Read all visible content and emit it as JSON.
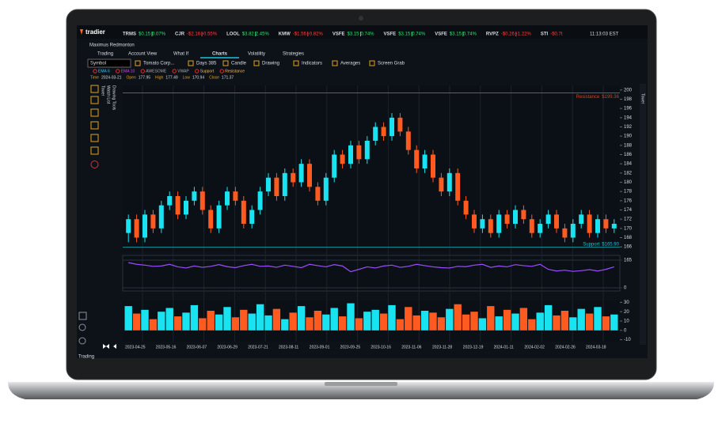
{
  "header": {
    "logo": "tradier",
    "tickers": [
      {
        "symbol": "TRMS",
        "change": "$0.15",
        "percent": "0.07%",
        "up": true
      },
      {
        "symbol": "CJR",
        "change": "-$2.16",
        "percent": "-0.55%",
        "up": false
      },
      {
        "symbol": "LOOL",
        "change": "$3.82",
        "percent": "2.45%",
        "up": true
      },
      {
        "symbol": "KMW",
        "change": "-$1.56",
        "percent": "-0.82%",
        "up": false
      },
      {
        "symbol": "VSFE",
        "change": "$3.15",
        "percent": "0.74%",
        "up": true
      },
      {
        "symbol": "VSFE",
        "change": "$3.15",
        "percent": "0.74%",
        "up": true
      },
      {
        "symbol": "VSFE",
        "change": "$3.15",
        "percent": "0.74%",
        "up": true
      },
      {
        "symbol": "RVPZ",
        "change": "-$0.26",
        "percent": "-1.22%",
        "up": false
      },
      {
        "symbol": "STI",
        "change": "-$0.7t",
        "percent": null,
        "up": false
      }
    ],
    "time": "11:13:03 EST"
  },
  "account": "Maximus Redmonton",
  "tabs": [
    "Trading",
    "Account View",
    "What If",
    "Charts",
    "Volatility",
    "Strategies"
  ],
  "active_tab": 3,
  "toolbar": {
    "symbol": "Symbol",
    "items": [
      "Tomato Corp...",
      "Days 385",
      "Candle",
      "Drawing",
      "Indicators",
      "Averages",
      "Screen Grab"
    ]
  },
  "indicators": [
    {
      "name": "EMA 6",
      "color": "#4fc3f7"
    },
    {
      "name": "EMA 10",
      "color": "#e040fb"
    },
    {
      "name": "AWESOME",
      "color": "#aaaaaa"
    },
    {
      "name": "VWAP",
      "color": "#aaaaaa"
    },
    {
      "name": "Support",
      "color": "#ffb74d"
    },
    {
      "name": "Resistance",
      "color": "#ffb74d"
    }
  ],
  "quote": [
    {
      "label": "Time",
      "value": "2024-03-21"
    },
    {
      "label": "Open",
      "value": 177.95
    },
    {
      "label": "High",
      "value": 177.49
    },
    {
      "label": "Low",
      "value": 170.94
    },
    {
      "label": "Close",
      "value": 171.37
    }
  ],
  "side_tabs": [
    "Tower",
    "Watch List",
    "Drawing Tools"
  ],
  "right_tab": "Tower",
  "bottom_tab": "Trading",
  "chart": {
    "type": "candlestick",
    "up_color": "#19e3f0",
    "down_color": "#ff5a1f",
    "candles": [
      [
        169,
        173,
        167,
        172
      ],
      [
        172,
        173,
        167,
        168
      ],
      [
        168,
        174,
        167,
        173
      ],
      [
        173,
        174,
        169,
        170
      ],
      [
        170,
        176,
        169,
        175
      ],
      [
        175,
        178,
        174,
        177
      ],
      [
        177,
        178,
        172,
        173
      ],
      [
        173,
        177,
        172,
        176
      ],
      [
        176,
        179,
        175,
        178
      ],
      [
        178,
        179,
        173,
        174
      ],
      [
        174,
        175,
        169,
        170
      ],
      [
        170,
        176,
        169,
        175
      ],
      [
        175,
        179,
        174,
        178
      ],
      [
        178,
        179,
        175,
        176
      ],
      [
        176,
        177,
        170,
        171
      ],
      [
        171,
        175,
        170,
        174
      ],
      [
        174,
        179,
        173,
        178
      ],
      [
        178,
        182,
        177,
        181
      ],
      [
        181,
        182,
        176,
        177
      ],
      [
        177,
        183,
        176,
        182
      ],
      [
        182,
        183,
        179,
        180
      ],
      [
        180,
        185,
        179,
        184
      ],
      [
        184,
        185,
        178,
        179
      ],
      [
        179,
        180,
        175,
        176
      ],
      [
        176,
        182,
        175,
        181
      ],
      [
        181,
        187,
        180,
        186
      ],
      [
        186,
        187,
        183,
        184
      ],
      [
        184,
        189,
        183,
        188
      ],
      [
        188,
        189,
        184,
        185
      ],
      [
        185,
        190,
        184,
        189
      ],
      [
        189,
        193,
        188,
        192
      ],
      [
        192,
        193,
        189,
        190
      ],
      [
        190,
        195,
        189,
        194
      ],
      [
        194,
        195,
        190,
        191
      ],
      [
        191,
        192,
        186,
        187
      ],
      [
        187,
        188,
        182,
        183
      ],
      [
        183,
        187,
        182,
        186
      ],
      [
        186,
        187,
        180,
        181
      ],
      [
        181,
        182,
        177,
        178
      ],
      [
        178,
        183,
        177,
        182
      ],
      [
        182,
        183,
        175,
        176
      ],
      [
        176,
        177,
        172,
        173
      ],
      [
        173,
        174,
        169,
        170
      ],
      [
        170,
        173,
        169,
        172
      ],
      [
        172,
        173,
        168,
        169
      ],
      [
        169,
        174,
        168,
        173
      ],
      [
        173,
        174,
        170,
        171
      ],
      [
        171,
        175,
        170,
        174
      ],
      [
        174,
        175,
        171,
        172
      ],
      [
        172,
        173,
        168,
        169
      ],
      [
        169,
        172,
        168,
        171
      ],
      [
        171,
        174,
        170,
        173
      ],
      [
        173,
        174,
        169,
        170
      ],
      [
        170,
        171,
        167,
        168
      ],
      [
        168,
        172,
        167,
        171
      ],
      [
        171,
        174,
        170,
        173
      ],
      [
        173,
        174,
        168,
        169
      ],
      [
        169,
        173,
        168,
        172
      ],
      [
        172,
        173,
        169,
        170
      ],
      [
        170,
        172,
        169,
        171
      ]
    ],
    "ylim": [
      165,
      201
    ],
    "yticks": [
      166,
      168,
      170,
      172,
      174,
      176,
      178,
      180,
      182,
      184,
      186,
      188,
      190,
      192,
      194,
      196,
      198,
      200
    ],
    "resistance": {
      "label": "Resistance",
      "value": 199.36,
      "value_label": "$199.36",
      "color": "#e0401a"
    },
    "support": {
      "label": "Support",
      "value": 165.9,
      "value_label": "$165.90",
      "color": "#19c3d0"
    },
    "oscillator": {
      "color": "#9b4dff",
      "values": [
        150,
        140,
        135,
        128,
        130,
        140,
        125,
        118,
        130,
        122,
        128,
        138,
        126,
        120,
        132,
        140,
        128,
        130,
        122,
        135,
        128,
        120,
        140,
        132,
        125,
        138,
        130,
        96,
        110,
        125,
        118,
        130,
        135,
        122,
        128,
        140,
        132,
        125,
        120,
        118,
        128,
        126,
        135,
        140,
        122,
        130,
        125,
        138,
        132,
        128,
        140,
        110,
        100,
        105,
        98,
        102,
        108,
        100,
        110,
        125
      ],
      "ylim": [
        -19,
        193
      ],
      "yticks": [
        0,
        165
      ]
    },
    "volume": {
      "values": [
        26,
        18,
        22,
        12,
        20,
        24,
        15,
        19,
        27,
        13,
        21,
        17,
        25,
        14,
        22,
        18,
        28,
        16,
        23,
        12,
        19,
        26,
        14,
        21,
        17,
        24,
        15,
        29,
        13,
        20,
        22,
        18,
        27,
        12,
        25,
        16,
        21,
        19,
        14,
        23,
        28,
        17,
        20,
        13,
        26,
        15,
        22,
        18,
        24,
        12,
        19,
        27,
        16,
        21,
        14,
        23,
        18,
        25,
        15,
        17
      ],
      "ylim": [
        -12,
        32
      ],
      "yticks": [
        -10,
        0,
        10,
        20,
        30
      ]
    },
    "x_labels": [
      "2023-04-25",
      "2023-05-16",
      "2023-06-07",
      "2023-06-29",
      "2023-07-21",
      "2023-08-11",
      "2023-09-01",
      "2023-09-25",
      "2023-10-16",
      "2023-11-06",
      "2023-11-28",
      "2023-12-19",
      "2024-01-11",
      "2024-02-02",
      "2024-02-26",
      "2024-03-18"
    ]
  }
}
